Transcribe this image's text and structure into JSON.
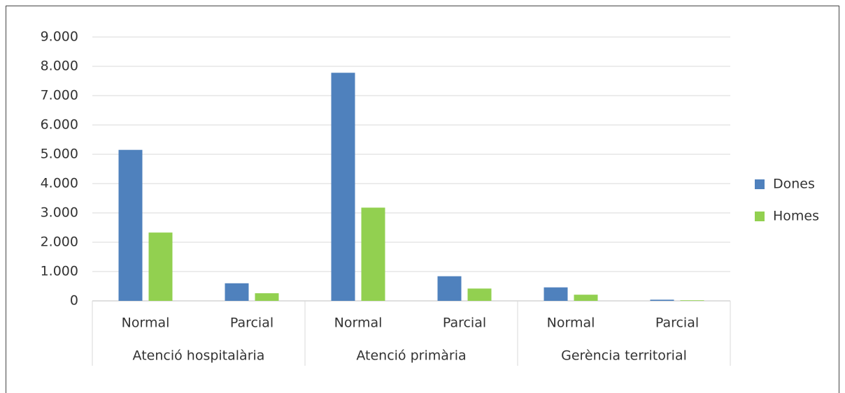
{
  "chart_data": {
    "type": "bar",
    "categories": [
      "Normal",
      "Parcial",
      "Normal",
      "Parcial",
      "Normal",
      "Parcial"
    ],
    "category_groups": [
      "Atenció hospitalària",
      "Atenció primària",
      "Gerència territorial"
    ],
    "series": [
      {
        "name": "Dones",
        "color": "#4f81bd",
        "values": [
          5150,
          600,
          7780,
          840,
          460,
          40
        ]
      },
      {
        "name": "Homes",
        "color": "#92d050",
        "values": [
          2330,
          260,
          3180,
          420,
          210,
          20
        ]
      }
    ],
    "ylim": [
      0,
      9000
    ],
    "yticks": [
      0,
      {
        "value": 1000,
        "label": "1.000"
      },
      {
        "value": 2000,
        "label": "2.000"
      },
      {
        "value": 3000,
        "label": "3.000"
      },
      {
        "value": 4000,
        "label": "4.000"
      },
      {
        "value": 5000,
        "label": "5.000"
      },
      {
        "value": 6000,
        "label": "6.000"
      },
      {
        "value": 7000,
        "label": "7.000"
      },
      {
        "value": 8000,
        "label": "8.000"
      },
      {
        "value": 9000,
        "label": "9.000"
      }
    ],
    "grid": true,
    "legend": "right"
  }
}
